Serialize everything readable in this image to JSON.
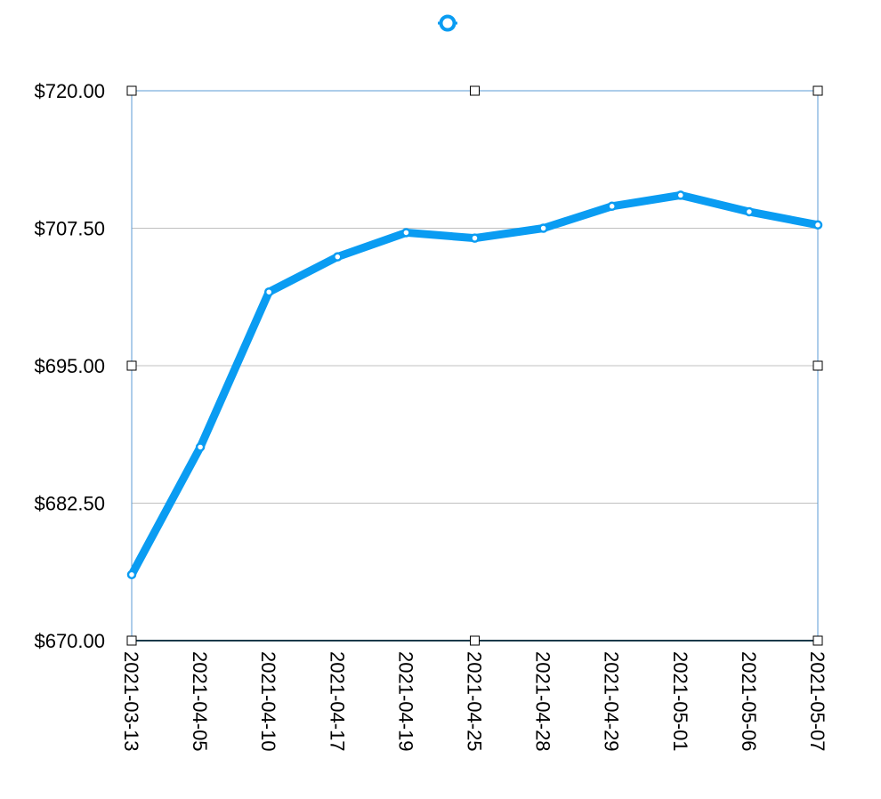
{
  "chart_data": {
    "type": "line",
    "title": "",
    "xlabel": "",
    "ylabel": "",
    "categories": [
      "2021-03-13",
      "2021-04-05",
      "2021-04-10",
      "2021-04-17",
      "2021-04-19",
      "2021-04-25",
      "2021-04-28",
      "2021-04-29",
      "2021-05-01",
      "2021-05-06",
      "2021-05-07"
    ],
    "series": [
      {
        "values": [
          676.0,
          687.6,
          701.7,
          704.9,
          707.1,
          706.6,
          707.5,
          709.5,
          710.5,
          709.0,
          707.8
        ]
      }
    ],
    "ylim": [
      670,
      720
    ],
    "yticks": [
      "$720.00",
      "$707.50",
      "$695.00",
      "$682.50",
      "$670.00"
    ],
    "ytick_values": [
      720,
      707.5,
      695,
      682.5,
      670
    ],
    "grid": true,
    "legend": "top-center",
    "colors": {
      "line": "#0a9cf2",
      "grid": "#c0c0c0",
      "frame": "#5b9bd5",
      "baseline": "#1a3a4a",
      "handle_fill": "#ffffff",
      "handle_stroke": "#000000"
    }
  }
}
